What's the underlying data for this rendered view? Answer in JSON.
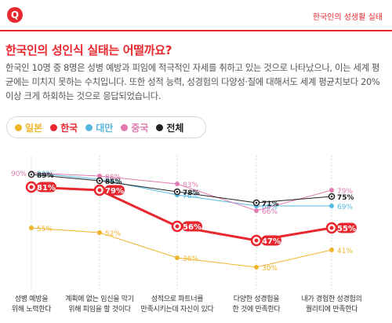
{
  "header": {
    "logo_letter": "Q",
    "section_label": "한국인의 성생활 실태"
  },
  "headline": "한국인의 성인식 실태는 어떨까요?",
  "description": "한국인 10명 중 8명은 성병 예방과 피임에 적극적인 자세를 취하고 있는 것으로 나타났으나, 이는 세계 평균에는 미치지 못하는 수치입니다. 또한 성적 능력, 성경험의 다양성·질에 대해서도 세계 평균치보다 20% 이상 크게 하회하는 것으로 응답되었습니다.",
  "colors": {
    "brand": "#e8282e",
    "japan": "#f0b429",
    "korea": "#e8282e",
    "taiwan": "#55b8e0",
    "china": "#e07ab0",
    "total": "#222222"
  },
  "chart_data": {
    "type": "line",
    "categories": [
      "성병 예방을\n위해 노력한다",
      "계획에 없는 임신을 막기\n위해 피임을 할 것이다",
      "성적으로 파트너를\n만족시키는데 자신이 있다",
      "다양한 성경험을\n한 것에 만족한다",
      "내가 경험한 성경험의\n퀄리티에 만족한다"
    ],
    "series": [
      {
        "name": "일본",
        "color": "#f0b429",
        "values": [
          55,
          52,
          36,
          30,
          41
        ]
      },
      {
        "name": "한국",
        "color": "#e8282e",
        "values": [
          81,
          79,
          56,
          47,
          55
        ]
      },
      {
        "name": "대만",
        "color": "#55b8e0",
        "values": [
          90,
          86,
          76,
          69,
          69
        ]
      },
      {
        "name": "중국",
        "color": "#e07ab0",
        "values": [
          90,
          88,
          83,
          66,
          79
        ]
      },
      {
        "name": "전체",
        "color": "#222222",
        "values": [
          89,
          85,
          78,
          71,
          75
        ]
      }
    ],
    "value_suffix": "%",
    "ylim": [
      25,
      95
    ]
  }
}
